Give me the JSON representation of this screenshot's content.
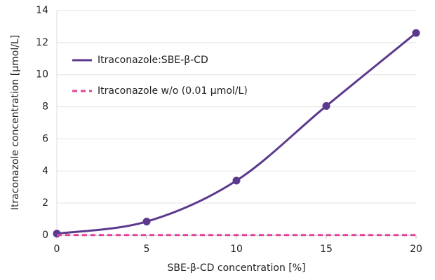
{
  "chart_data": {
    "type": "line",
    "x_label": "SBE-β-CD concentration [%]",
    "y_label": "Itraconazole concentration [µmol/L]",
    "x": [
      0,
      5,
      10,
      15,
      20
    ],
    "series": [
      {
        "name": "Itraconazole:SBE-β-CD",
        "color": "#5b3a8e",
        "values": [
          0.1,
          0.85,
          3.4,
          8.05,
          12.6
        ],
        "markers": true,
        "dashed": false
      },
      {
        "name": "Itraconazole w/o (0.01 µmol/L)",
        "color": "#e0449a",
        "values": [
          0.01,
          0.01,
          0.01,
          0.01,
          0.01
        ],
        "markers": false,
        "dashed": true
      }
    ],
    "xlim": [
      0,
      20
    ],
    "xticks": [
      0,
      5,
      10,
      15,
      20
    ],
    "ylim": [
      0,
      14
    ],
    "yticks": [
      0,
      2,
      4,
      6,
      8,
      10,
      12,
      14
    ],
    "grid": true,
    "legend": "upper left"
  }
}
